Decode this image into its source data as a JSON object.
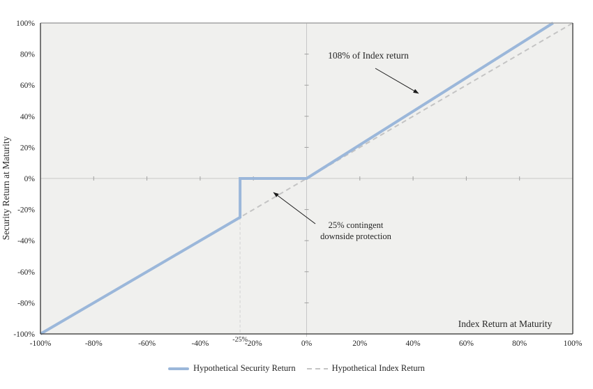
{
  "chart_data": {
    "type": "line",
    "xlabel": "Index Return at Maturity",
    "ylabel": "Security Return at Maturity",
    "xlim": [
      -100,
      100
    ],
    "ylim": [
      -100,
      100
    ],
    "units": "%",
    "grid": false,
    "plot_background": "#f0f0ee",
    "legend_position": "bottom-center",
    "x_tick_values": [
      -100,
      -80,
      -60,
      -40,
      -20,
      0,
      20,
      40,
      60,
      80,
      100
    ],
    "x_tick_labels": [
      "-100%",
      "-80%",
      "-60%",
      "-40%",
      "-20%",
      "0%",
      "20%",
      "40%",
      "60%",
      "80%",
      "100%"
    ],
    "special_x_tick": {
      "value": -25,
      "label": "-25%"
    },
    "y_tick_values": [
      100,
      80,
      60,
      40,
      20,
      0,
      -20,
      -40,
      -60,
      -80,
      -100
    ],
    "y_tick_labels": [
      "100%",
      "80%",
      "60%",
      "40%",
      "20%",
      "0%",
      "-20%",
      "-40%",
      "-60%",
      "-80%",
      "-100%"
    ],
    "series": [
      {
        "name": "Hypothetical Security Return",
        "style": "solid",
        "color": "#9bb7da",
        "stroke_width": 4,
        "points": [
          [
            -100,
            -100
          ],
          [
            -25,
            -25
          ],
          [
            -25,
            0
          ],
          [
            0,
            0
          ],
          [
            92.6,
            100
          ]
        ]
      },
      {
        "name": "Hypothetical Index Return",
        "style": "dashed",
        "color": "#c4c4c4",
        "stroke_width": 2,
        "points": [
          [
            -100,
            -100
          ],
          [
            100,
            100
          ]
        ]
      }
    ],
    "reference_guide": {
      "x": -25,
      "y_from": -25,
      "y_to": -100,
      "style": "dashed",
      "color": "#d9d9d9"
    },
    "annotations": [
      {
        "text": "108% of Index return"
      },
      {
        "line1": "25% contingent",
        "line2": "downside protection"
      }
    ]
  }
}
